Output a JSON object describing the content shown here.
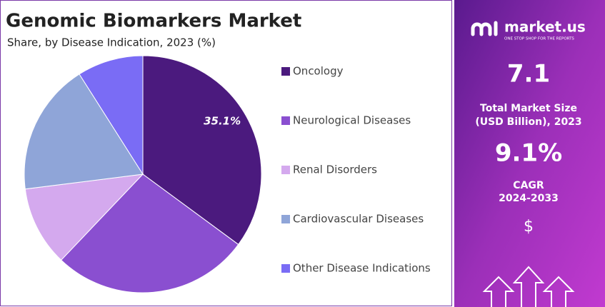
{
  "chart_data": {
    "type": "pie",
    "title": "Genomic Biomarkers Market",
    "subtitle": "Share, by Disease Indication, 2023 (%)",
    "categories": [
      "Oncology",
      "Neurological Diseases",
      "Renal Disorders",
      "Cardiovascular Diseases",
      "Other Disease Indications"
    ],
    "values": [
      35.1,
      27,
      10.9,
      18,
      9
    ],
    "value_labels": [
      "35.1%",
      null,
      null,
      null,
      null
    ],
    "colors": [
      "#4b1a7e",
      "#8a4fd0",
      "#d4a9ee",
      "#8fa5d8",
      "#7a6cf5"
    ],
    "legend": "right"
  },
  "panel": {
    "brand": "market.us",
    "tagline": "ONE STOP SHOP FOR THE REPORTS",
    "market_size": "7.1",
    "market_size_label_1": "Total Market Size",
    "market_size_label_2": "(USD Billion), 2023",
    "cagr": "9.1%",
    "cagr_label_1": "CAGR",
    "cagr_label_2": "2024-2033",
    "currency": "$"
  }
}
